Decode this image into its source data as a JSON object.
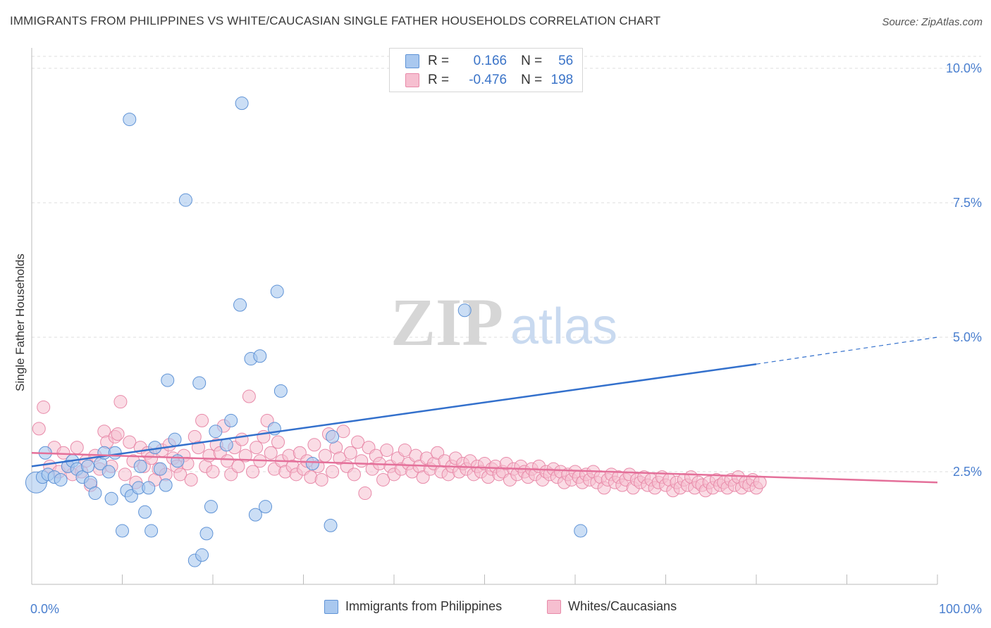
{
  "header": {
    "title": "IMMIGRANTS FROM PHILIPPINES VS WHITE/CAUCASIAN SINGLE FATHER HOUSEHOLDS CORRELATION CHART",
    "source": "Source: ZipAtlas.com"
  },
  "legend": {
    "r_label": "R =",
    "n_label": "N =",
    "series1": {
      "r": "0.166",
      "n": "56"
    },
    "series2": {
      "r": "-0.476",
      "n": "198"
    }
  },
  "bottom_legend": {
    "series1": "Immigrants from Philippines",
    "series2": "Whites/Caucasians"
  },
  "watermark": {
    "zip": "ZIP",
    "atlas": "atlas"
  },
  "colors": {
    "blue_fill": "#a9c8ef",
    "blue_stroke": "#5f93d6",
    "blue_line": "#3370cc",
    "pink_fill": "#f6bfd0",
    "pink_stroke": "#e88aa9",
    "pink_line": "#e4709a",
    "tick_label": "#4a7fcf",
    "grid": "#dddddd"
  },
  "chart_data": {
    "type": "scatter",
    "title": "IMMIGRANTS FROM PHILIPPINES VS WHITE/CAUCASIAN SINGLE FATHER HOUSEHOLDS CORRELATION CHART",
    "xlabel": "",
    "ylabel": "Single Father Households",
    "xlim": [
      0,
      100
    ],
    "ylim": [
      0,
      10.5
    ],
    "x_tick_labels": [
      "0.0%",
      "100.0%"
    ],
    "y_ticks": [
      2.5,
      5.0,
      7.5,
      10.0
    ],
    "y_tick_labels": [
      "2.5%",
      "5.0%",
      "7.5%",
      "10.0%"
    ],
    "grid": "horizontal dashed",
    "legend_position": "top-center",
    "series": [
      {
        "name": "Immigrants from Philippines",
        "color": "#a9c8ef",
        "trend": {
          "x0": 0,
          "y0": 2.6,
          "x1": 80,
          "y1": 4.5,
          "dashed_to_x": 100,
          "dashed_to_y": 5.0
        },
        "points": [
          [
            0.5,
            2.3
          ],
          [
            1.2,
            2.4
          ],
          [
            1.8,
            2.45
          ],
          [
            2.5,
            2.4
          ],
          [
            3.2,
            2.35
          ],
          [
            4.0,
            2.6
          ],
          [
            4.5,
            2.7
          ],
          [
            5.0,
            2.55
          ],
          [
            5.6,
            2.4
          ],
          [
            6.2,
            2.6
          ],
          [
            6.5,
            2.3
          ],
          [
            7.0,
            2.1
          ],
          [
            7.6,
            2.65
          ],
          [
            8.0,
            2.85
          ],
          [
            8.5,
            2.5
          ],
          [
            8.8,
            2.0
          ],
          [
            9.2,
            2.85
          ],
          [
            10.0,
            1.4
          ],
          [
            10.5,
            2.15
          ],
          [
            11.0,
            2.05
          ],
          [
            10.8,
            9.05
          ],
          [
            11.8,
            2.2
          ],
          [
            12.0,
            2.6
          ],
          [
            12.5,
            1.75
          ],
          [
            12.9,
            2.2
          ],
          [
            13.2,
            1.4
          ],
          [
            13.6,
            2.95
          ],
          [
            14.2,
            2.55
          ],
          [
            14.8,
            2.25
          ],
          [
            15.0,
            4.2
          ],
          [
            15.8,
            3.1
          ],
          [
            16.1,
            2.7
          ],
          [
            17.0,
            7.55
          ],
          [
            18.0,
            0.85
          ],
          [
            18.5,
            4.15
          ],
          [
            18.8,
            0.95
          ],
          [
            19.3,
            1.35
          ],
          [
            19.8,
            1.85
          ],
          [
            20.3,
            3.25
          ],
          [
            21.5,
            3.0
          ],
          [
            22.0,
            3.45
          ],
          [
            23.2,
            9.35
          ],
          [
            23.0,
            5.6
          ],
          [
            24.2,
            4.6
          ],
          [
            24.7,
            1.7
          ],
          [
            25.2,
            4.65
          ],
          [
            25.8,
            1.85
          ],
          [
            26.8,
            3.3
          ],
          [
            27.1,
            5.85
          ],
          [
            27.5,
            4.0
          ],
          [
            31.0,
            2.65
          ],
          [
            33.2,
            3.15
          ],
          [
            33.0,
            1.5
          ],
          [
            47.8,
            5.5
          ],
          [
            60.6,
            1.4
          ],
          [
            1.5,
            2.85
          ]
        ],
        "sizes": [
          15,
          9,
          9,
          9,
          9,
          9,
          9,
          9,
          9,
          9,
          9,
          9,
          9,
          9,
          9,
          9,
          9,
          9,
          9,
          9,
          9,
          9,
          9,
          9,
          9,
          9,
          9,
          9,
          9,
          9,
          9,
          9,
          9,
          9,
          9,
          9,
          9,
          9,
          9,
          9,
          9,
          9,
          9,
          9,
          9,
          9,
          9,
          9,
          9,
          9,
          9,
          9,
          9,
          9,
          9,
          9
        ]
      },
      {
        "name": "Whites/Caucasians",
        "color": "#f6bfd0",
        "trend": {
          "x0": 0,
          "y0": 2.85,
          "x1": 100,
          "y1": 2.3
        },
        "points": [
          [
            0.8,
            3.3
          ],
          [
            1.3,
            3.7
          ],
          [
            2.0,
            2.6
          ],
          [
            2.5,
            2.95
          ],
          [
            3.0,
            2.5
          ],
          [
            3.5,
            2.85
          ],
          [
            4.0,
            2.6
          ],
          [
            4.5,
            2.45
          ],
          [
            5.0,
            2.95
          ],
          [
            5.5,
            2.5
          ],
          [
            6.0,
            2.7
          ],
          [
            6.5,
            2.25
          ],
          [
            7.0,
            2.8
          ],
          [
            7.5,
            2.55
          ],
          [
            8.0,
            3.25
          ],
          [
            8.3,
            3.05
          ],
          [
            8.8,
            2.6
          ],
          [
            9.2,
            3.15
          ],
          [
            9.5,
            3.2
          ],
          [
            9.8,
            3.8
          ],
          [
            10.3,
            2.45
          ],
          [
            10.8,
            3.05
          ],
          [
            11.2,
            2.7
          ],
          [
            11.5,
            2.3
          ],
          [
            12.0,
            2.95
          ],
          [
            12.4,
            2.6
          ],
          [
            12.8,
            2.85
          ],
          [
            13.2,
            2.75
          ],
          [
            13.6,
            2.35
          ],
          [
            14.0,
            2.55
          ],
          [
            14.4,
            2.9
          ],
          [
            14.8,
            2.45
          ],
          [
            15.2,
            3.0
          ],
          [
            15.6,
            2.75
          ],
          [
            16.0,
            2.6
          ],
          [
            16.4,
            2.45
          ],
          [
            16.8,
            2.8
          ],
          [
            17.2,
            2.65
          ],
          [
            17.6,
            2.35
          ],
          [
            18.0,
            3.15
          ],
          [
            18.4,
            2.95
          ],
          [
            18.8,
            3.45
          ],
          [
            19.2,
            2.6
          ],
          [
            19.6,
            2.8
          ],
          [
            20.0,
            2.5
          ],
          [
            20.4,
            3.0
          ],
          [
            20.8,
            2.85
          ],
          [
            21.2,
            3.35
          ],
          [
            21.6,
            2.7
          ],
          [
            22.0,
            2.45
          ],
          [
            22.4,
            2.95
          ],
          [
            22.8,
            2.6
          ],
          [
            23.2,
            3.1
          ],
          [
            23.6,
            2.8
          ],
          [
            24.0,
            3.9
          ],
          [
            24.4,
            2.5
          ],
          [
            24.8,
            2.95
          ],
          [
            25.2,
            2.7
          ],
          [
            25.6,
            3.15
          ],
          [
            26.0,
            3.45
          ],
          [
            26.4,
            2.85
          ],
          [
            26.8,
            2.55
          ],
          [
            27.2,
            3.05
          ],
          [
            27.6,
            2.7
          ],
          [
            28.0,
            2.5
          ],
          [
            28.4,
            2.8
          ],
          [
            28.8,
            2.6
          ],
          [
            29.2,
            2.45
          ],
          [
            29.6,
            2.85
          ],
          [
            30.0,
            2.55
          ],
          [
            30.4,
            2.7
          ],
          [
            30.8,
            2.4
          ],
          [
            31.2,
            3.0
          ],
          [
            31.6,
            2.6
          ],
          [
            32.0,
            2.35
          ],
          [
            32.4,
            2.8
          ],
          [
            32.8,
            3.2
          ],
          [
            33.2,
            2.5
          ],
          [
            33.6,
            2.95
          ],
          [
            34.0,
            2.75
          ],
          [
            34.4,
            3.25
          ],
          [
            34.8,
            2.6
          ],
          [
            35.2,
            2.85
          ],
          [
            35.6,
            2.45
          ],
          [
            36.0,
            3.05
          ],
          [
            36.4,
            2.7
          ],
          [
            36.8,
            2.1
          ],
          [
            37.2,
            2.95
          ],
          [
            37.6,
            2.55
          ],
          [
            38.0,
            2.8
          ],
          [
            38.4,
            2.65
          ],
          [
            38.8,
            2.35
          ],
          [
            39.2,
            2.9
          ],
          [
            39.6,
            2.6
          ],
          [
            40.0,
            2.45
          ],
          [
            40.4,
            2.75
          ],
          [
            40.8,
            2.55
          ],
          [
            41.2,
            2.9
          ],
          [
            41.6,
            2.65
          ],
          [
            42.0,
            2.5
          ],
          [
            42.4,
            2.8
          ],
          [
            42.8,
            2.6
          ],
          [
            43.2,
            2.4
          ],
          [
            43.6,
            2.75
          ],
          [
            44.0,
            2.55
          ],
          [
            44.4,
            2.65
          ],
          [
            44.8,
            2.85
          ],
          [
            45.2,
            2.5
          ],
          [
            45.6,
            2.7
          ],
          [
            46.0,
            2.45
          ],
          [
            46.4,
            2.6
          ],
          [
            46.8,
            2.75
          ],
          [
            47.2,
            2.5
          ],
          [
            47.6,
            2.65
          ],
          [
            48.0,
            2.55
          ],
          [
            48.4,
            2.7
          ],
          [
            48.8,
            2.45
          ],
          [
            49.2,
            2.6
          ],
          [
            49.6,
            2.5
          ],
          [
            50.0,
            2.65
          ],
          [
            50.4,
            2.4
          ],
          [
            50.8,
            2.55
          ],
          [
            51.2,
            2.6
          ],
          [
            51.6,
            2.45
          ],
          [
            52.0,
            2.5
          ],
          [
            52.4,
            2.65
          ],
          [
            52.8,
            2.35
          ],
          [
            53.2,
            2.55
          ],
          [
            53.6,
            2.45
          ],
          [
            54.0,
            2.6
          ],
          [
            54.4,
            2.5
          ],
          [
            54.8,
            2.4
          ],
          [
            55.2,
            2.55
          ],
          [
            55.6,
            2.45
          ],
          [
            56.0,
            2.6
          ],
          [
            56.4,
            2.35
          ],
          [
            56.8,
            2.5
          ],
          [
            57.2,
            2.45
          ],
          [
            57.6,
            2.55
          ],
          [
            58.0,
            2.4
          ],
          [
            58.4,
            2.5
          ],
          [
            58.8,
            2.3
          ],
          [
            59.2,
            2.45
          ],
          [
            59.6,
            2.35
          ],
          [
            60.0,
            2.5
          ],
          [
            60.4,
            2.4
          ],
          [
            60.8,
            2.3
          ],
          [
            61.2,
            2.45
          ],
          [
            61.6,
            2.35
          ],
          [
            62.0,
            2.5
          ],
          [
            62.4,
            2.3
          ],
          [
            62.8,
            2.4
          ],
          [
            63.2,
            2.2
          ],
          [
            63.6,
            2.35
          ],
          [
            64.0,
            2.45
          ],
          [
            64.4,
            2.3
          ],
          [
            64.8,
            2.4
          ],
          [
            65.2,
            2.25
          ],
          [
            65.6,
            2.35
          ],
          [
            66.0,
            2.45
          ],
          [
            66.4,
            2.2
          ],
          [
            66.8,
            2.35
          ],
          [
            67.2,
            2.3
          ],
          [
            67.6,
            2.4
          ],
          [
            68.0,
            2.25
          ],
          [
            68.4,
            2.35
          ],
          [
            68.8,
            2.2
          ],
          [
            69.2,
            2.3
          ],
          [
            69.6,
            2.4
          ],
          [
            70.0,
            2.25
          ],
          [
            70.4,
            2.35
          ],
          [
            70.8,
            2.15
          ],
          [
            71.2,
            2.3
          ],
          [
            71.6,
            2.2
          ],
          [
            72.0,
            2.35
          ],
          [
            72.4,
            2.25
          ],
          [
            72.8,
            2.4
          ],
          [
            73.2,
            2.2
          ],
          [
            73.6,
            2.3
          ],
          [
            74.0,
            2.25
          ],
          [
            74.4,
            2.15
          ],
          [
            74.8,
            2.3
          ],
          [
            75.2,
            2.2
          ],
          [
            75.6,
            2.35
          ],
          [
            76.0,
            2.25
          ],
          [
            76.4,
            2.3
          ],
          [
            76.8,
            2.2
          ],
          [
            77.2,
            2.35
          ],
          [
            77.6,
            2.25
          ],
          [
            78.0,
            2.4
          ],
          [
            78.4,
            2.2
          ],
          [
            78.8,
            2.3
          ],
          [
            79.2,
            2.25
          ],
          [
            79.6,
            2.35
          ],
          [
            80.0,
            2.2
          ],
          [
            80.4,
            2.3
          ]
        ],
        "sizes": "uniform"
      }
    ]
  }
}
